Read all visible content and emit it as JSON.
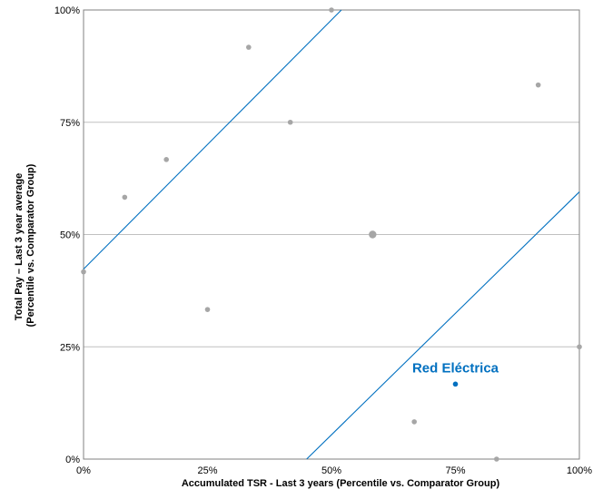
{
  "chart_data": {
    "type": "scatter",
    "title": "",
    "xlabel": "Accumulated TSR - Last 3 years (Percentile vs. Comparator Group)",
    "ylabel_lines": [
      "Total Pay – Last 3 year average",
      "(Percentile vs. Comparator Group)"
    ],
    "xlim": [
      0,
      100
    ],
    "ylim": [
      0,
      100
    ],
    "x_ticks": [
      0,
      25,
      50,
      75,
      100
    ],
    "y_ticks": [
      0,
      25,
      50,
      75,
      100
    ],
    "x_tick_labels": [
      "0%",
      "25%",
      "50%",
      "75%",
      "100%"
    ],
    "y_tick_labels": [
      "0%",
      "25%",
      "50%",
      "75%",
      "100%"
    ],
    "grid": "horizontal",
    "series": [
      {
        "color": "#a6a6a6",
        "points": [
          {
            "x": 0,
            "y": 41.7
          },
          {
            "x": 8.3,
            "y": 58.3
          },
          {
            "x": 16.7,
            "y": 66.7
          },
          {
            "x": 25,
            "y": 33.3
          },
          {
            "x": 33.3,
            "y": 91.7
          },
          {
            "x": 41.7,
            "y": 75
          },
          {
            "x": 50,
            "y": 100
          },
          {
            "x": 58.3,
            "y": 50,
            "large": true
          },
          {
            "x": 66.7,
            "y": 8.3
          },
          {
            "x": 83.3,
            "y": 0
          },
          {
            "x": 91.7,
            "y": 83.3
          },
          {
            "x": 100,
            "y": 25
          }
        ]
      },
      {
        "name": "Red Eléctrica",
        "color": "#0070c0",
        "points": [
          {
            "x": 75,
            "y": 16.7
          }
        ]
      }
    ],
    "reference_lines": [
      {
        "color": "#0070c0",
        "from": {
          "x": 0,
          "y": 42.3
        },
        "to": {
          "x": 52,
          "y": 100
        }
      },
      {
        "color": "#0070c0",
        "from": {
          "x": 45,
          "y": 0
        },
        "to": {
          "x": 100,
          "y": 59.5
        }
      }
    ],
    "annotations": [
      {
        "text": "Red Eléctrica",
        "x": 75,
        "y": 16.7,
        "color": "#0070c0",
        "anchor": "above"
      }
    ]
  }
}
